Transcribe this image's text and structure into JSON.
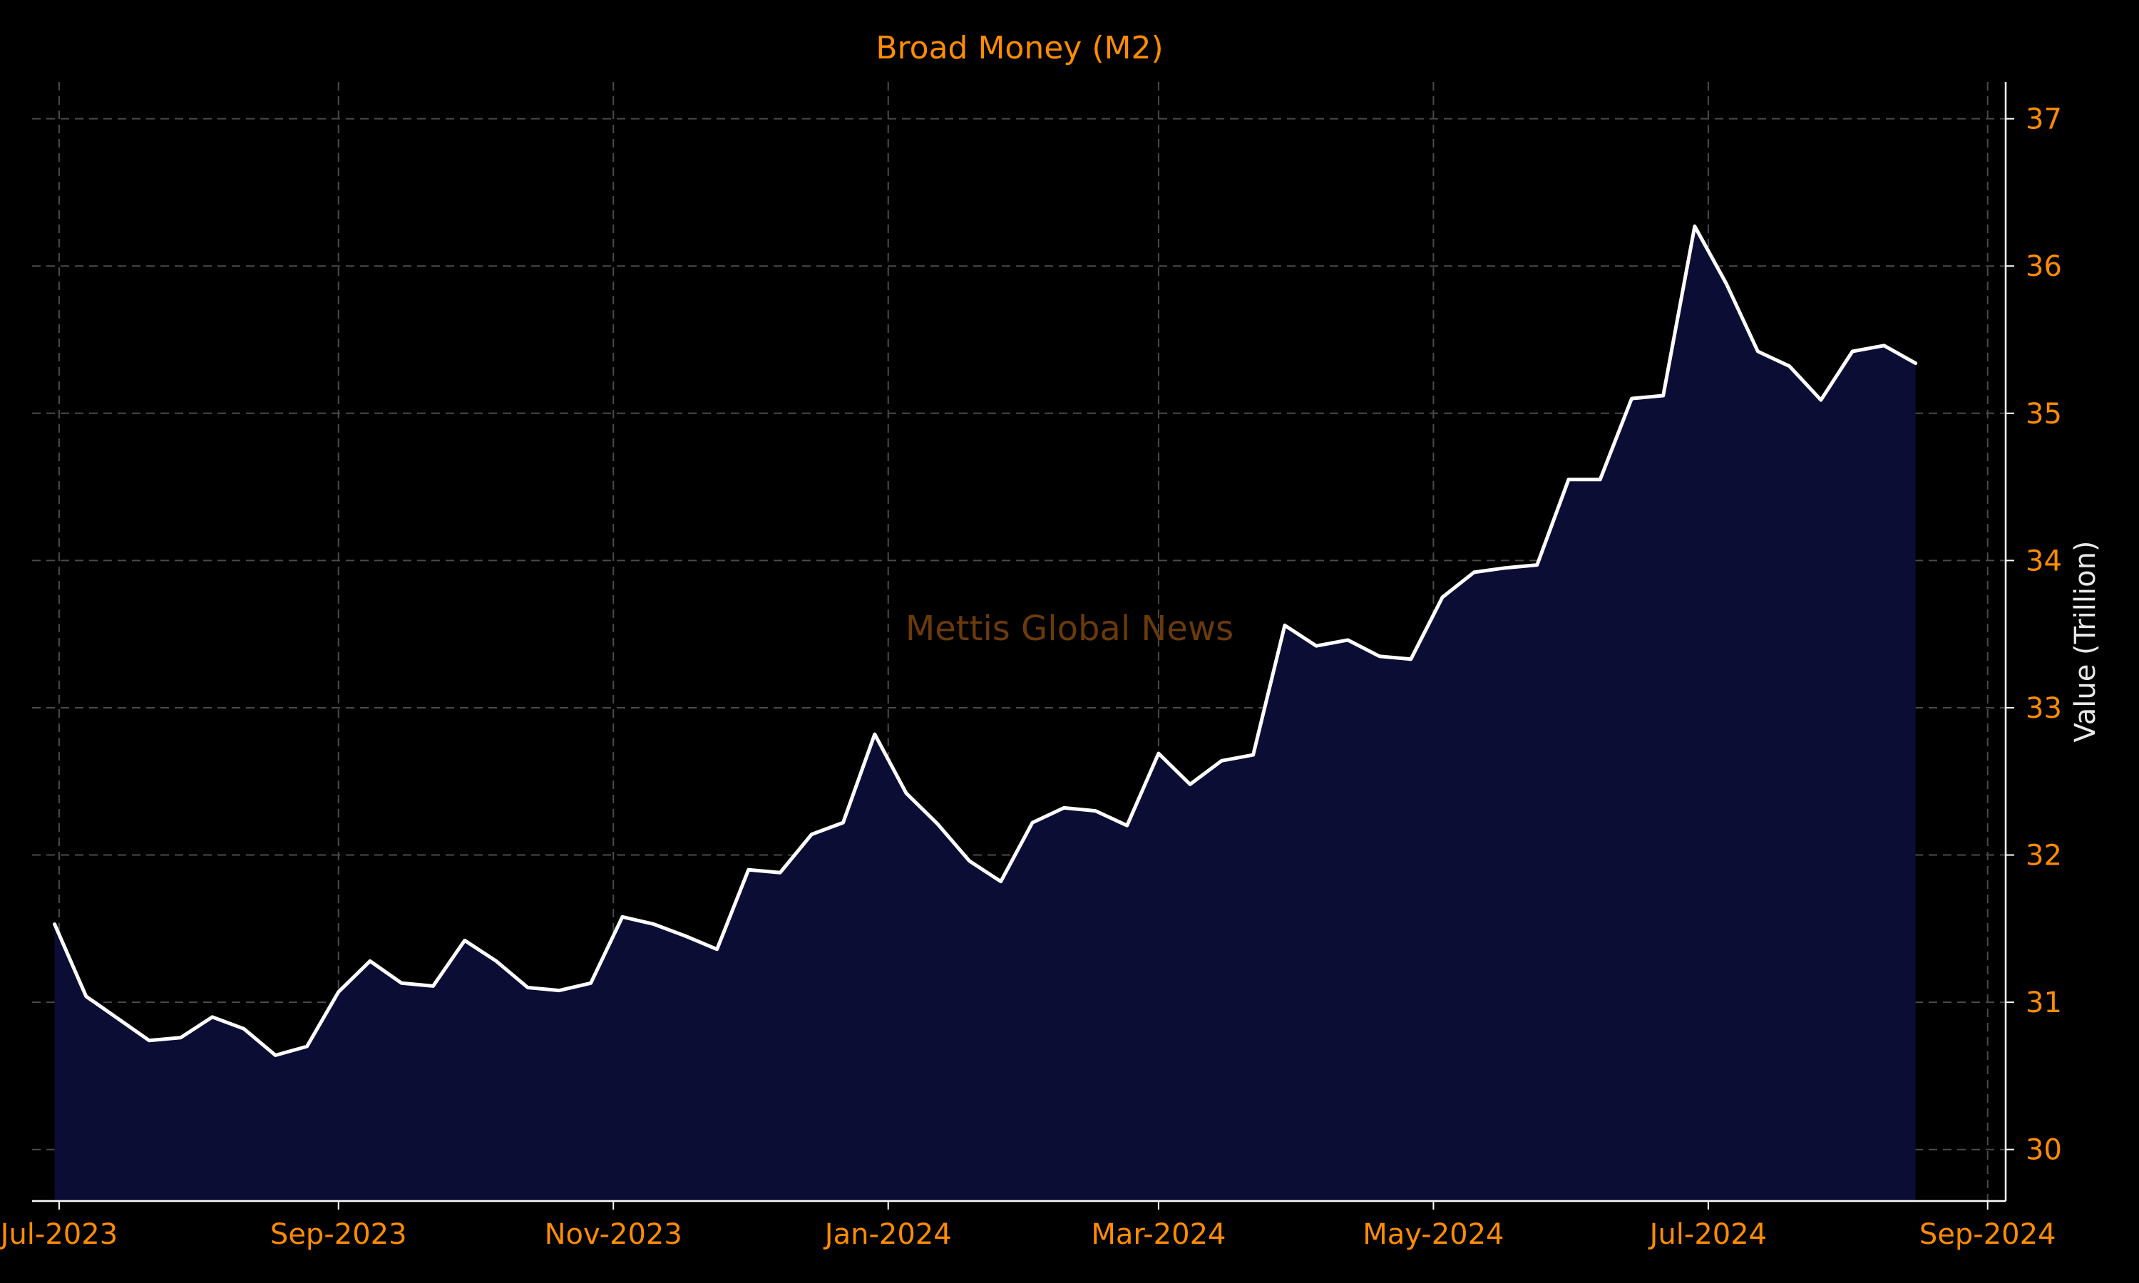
{
  "chart_data": {
    "type": "area",
    "title": "Broad Money (M2)",
    "xlabel": "",
    "ylabel": "Value (Trillion)",
    "watermark": "Mettis Global News",
    "x_ticks": [
      "Jul-2023",
      "Sep-2023",
      "Nov-2023",
      "Jan-2024",
      "Mar-2024",
      "May-2024",
      "Jul-2024",
      "Sep-2024"
    ],
    "y_ticks": [
      30,
      31,
      32,
      33,
      34,
      35,
      36,
      37
    ],
    "xlim": [
      "2023-06-25",
      "2024-09-05"
    ],
    "ylim": [
      29.65,
      37.25
    ],
    "grid": true,
    "y_axis_position": "right",
    "colors": {
      "background": "#000000",
      "line": "#ffffff",
      "fill": "#0b0d35",
      "title": "#ff8c00",
      "tick_labels": "#ff8c00",
      "ylabel": "#e8e8e8",
      "grid": "#4a4a4a",
      "watermark": "#6b3a0a"
    },
    "series": [
      {
        "x": [
          "2023-06-30",
          "2023-07-07",
          "2023-07-14",
          "2023-07-21",
          "2023-07-28",
          "2023-08-04",
          "2023-08-11",
          "2023-08-18",
          "2023-08-25",
          "2023-09-01",
          "2023-09-08",
          "2023-09-15",
          "2023-09-22",
          "2023-09-29",
          "2023-10-06",
          "2023-10-13",
          "2023-10-20",
          "2023-10-27",
          "2023-11-03",
          "2023-11-10",
          "2023-11-17",
          "2023-11-24",
          "2023-12-01",
          "2023-12-08",
          "2023-12-15",
          "2023-12-22",
          "2023-12-29",
          "2024-01-05",
          "2024-01-12",
          "2024-01-19",
          "2024-01-26",
          "2024-02-02",
          "2024-02-09",
          "2024-02-16",
          "2024-02-23",
          "2024-03-01",
          "2024-03-08",
          "2024-03-15",
          "2024-03-22",
          "2024-03-29",
          "2024-04-05",
          "2024-04-12",
          "2024-04-19",
          "2024-04-26",
          "2024-05-03",
          "2024-05-10",
          "2024-05-17",
          "2024-05-24",
          "2024-05-31",
          "2024-06-07",
          "2024-06-14",
          "2024-06-21",
          "2024-06-28",
          "2024-07-05",
          "2024-07-12",
          "2024-07-19",
          "2024-07-26",
          "2024-08-02",
          "2024-08-09",
          "2024-08-16"
        ],
        "values": [
          31.53,
          31.04,
          30.89,
          30.74,
          30.76,
          30.9,
          30.82,
          30.64,
          30.7,
          31.07,
          31.28,
          31.13,
          31.11,
          31.42,
          31.28,
          31.1,
          31.08,
          31.13,
          31.58,
          31.53,
          31.45,
          31.36,
          31.9,
          31.88,
          32.14,
          32.22,
          32.82,
          32.42,
          32.21,
          31.96,
          31.82,
          32.22,
          32.32,
          32.3,
          32.2,
          32.69,
          32.48,
          32.64,
          32.68,
          33.56,
          33.42,
          33.46,
          33.35,
          33.33,
          33.75,
          33.92,
          33.95,
          33.97,
          34.55,
          34.55,
          35.1,
          35.12,
          36.27,
          35.88,
          35.42,
          35.32,
          35.09,
          35.42,
          35.46,
          35.34
        ]
      }
    ]
  }
}
